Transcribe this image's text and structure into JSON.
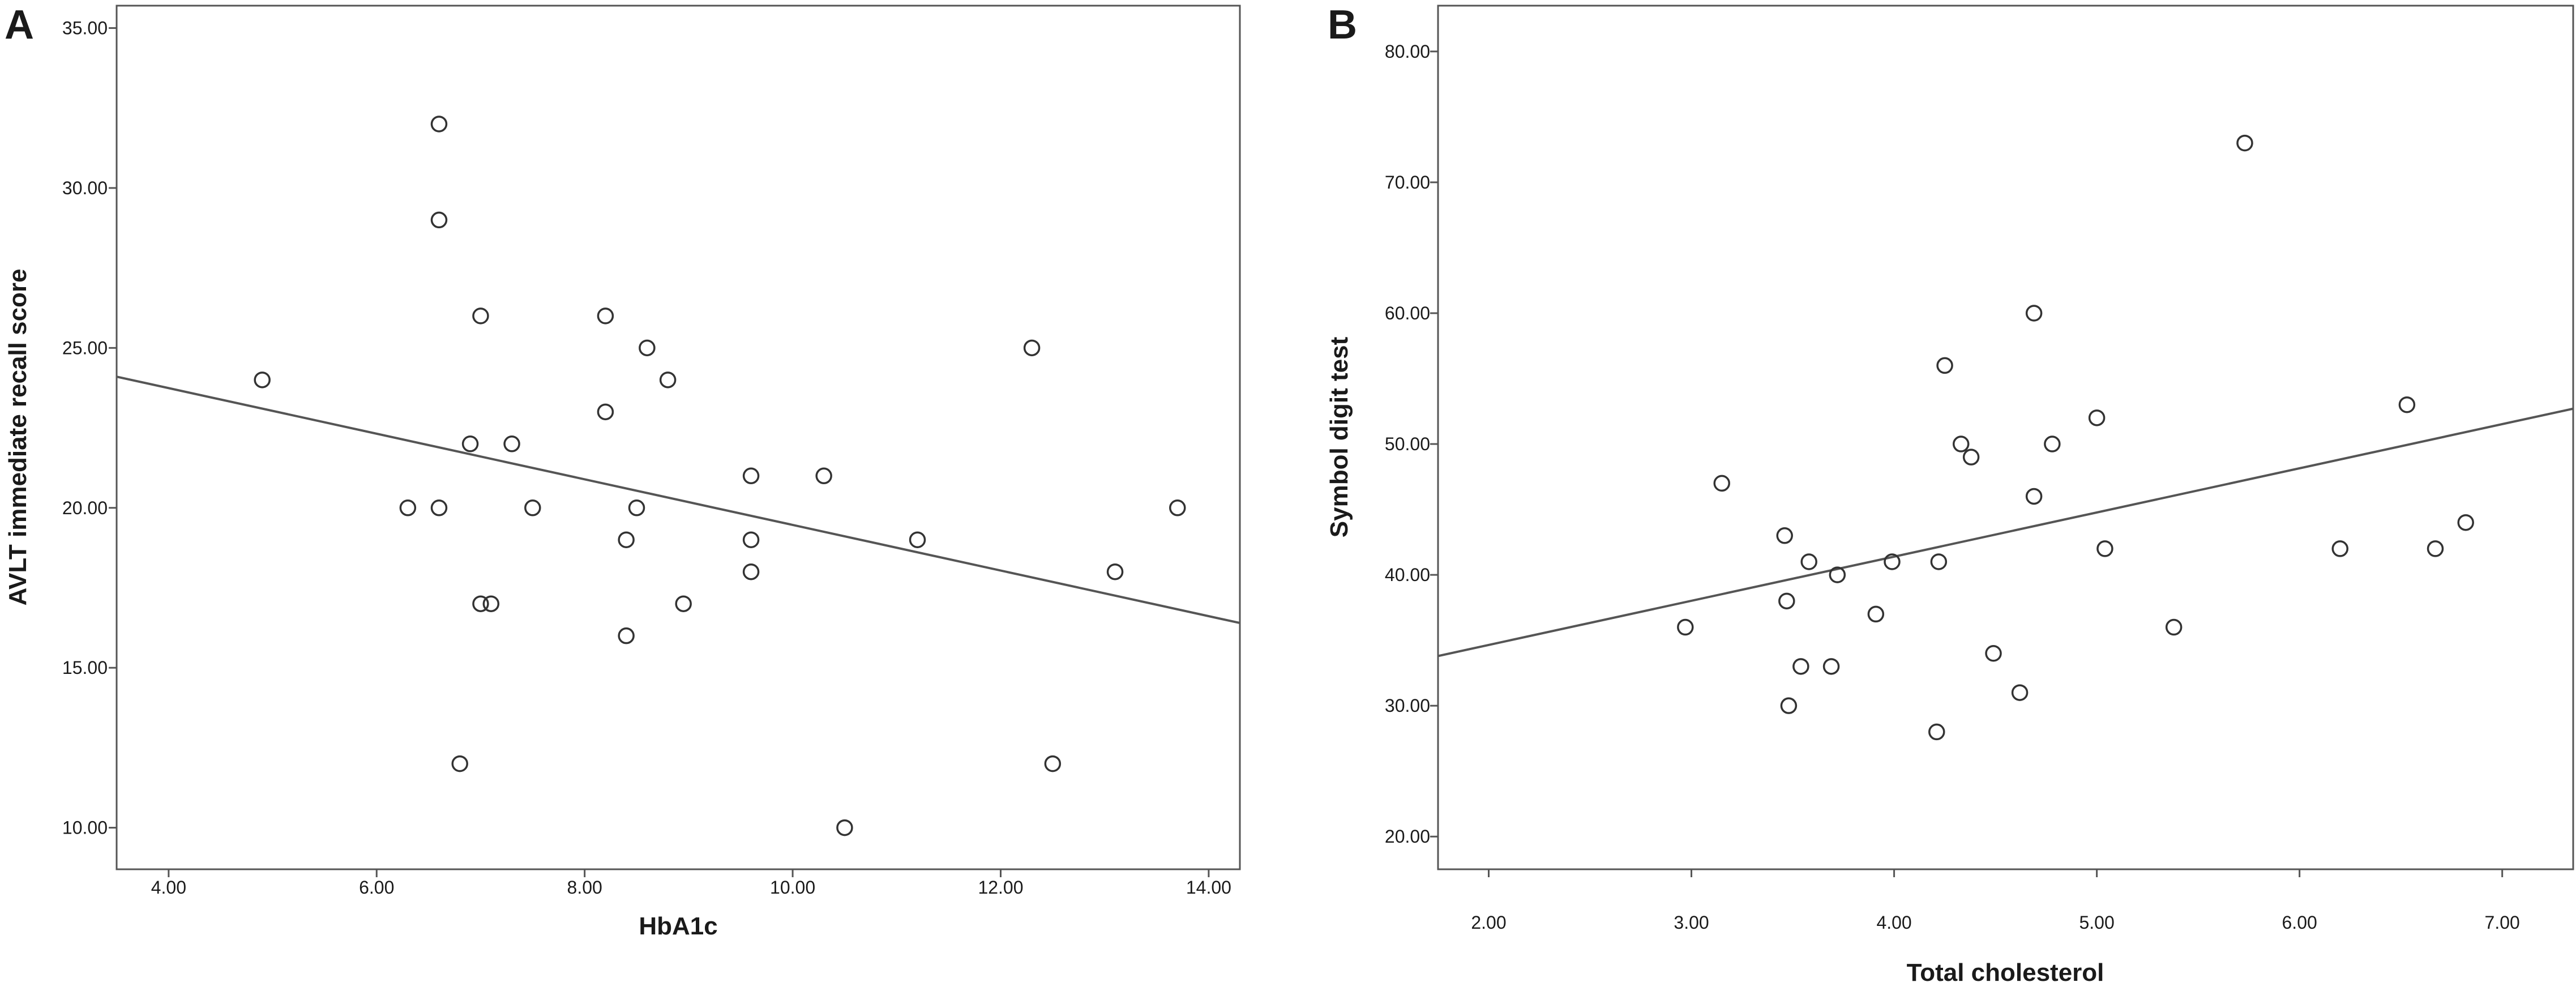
{
  "chart_data": [
    {
      "type": "scatter",
      "panel_label": "A",
      "title": "",
      "xlabel": "HbA1c",
      "ylabel": "AVLT  immediate  recall  score",
      "xlim": [
        3.5,
        14.3
      ],
      "ylim": [
        8.7,
        35.7
      ],
      "xticks": [
        4,
        6,
        8,
        10,
        12,
        14
      ],
      "yticks": [
        10,
        15,
        20,
        25,
        30,
        35
      ],
      "xtick_labels": [
        "4.00",
        "6.00",
        "8.00",
        "10.00",
        "12.00",
        "14.00"
      ],
      "ytick_labels": [
        "10.00",
        "15.00",
        "20.00",
        "25.00",
        "30.00",
        "35.00"
      ],
      "grid": false,
      "legend": "none",
      "points": [
        [
          4.9,
          24
        ],
        [
          6.3,
          20
        ],
        [
          6.6,
          32
        ],
        [
          6.6,
          29
        ],
        [
          6.6,
          20
        ],
        [
          6.8,
          12
        ],
        [
          6.9,
          22
        ],
        [
          7.0,
          26
        ],
        [
          7.0,
          17
        ],
        [
          7.1,
          17
        ],
        [
          7.3,
          22
        ],
        [
          7.5,
          20
        ],
        [
          8.2,
          26
        ],
        [
          8.2,
          23
        ],
        [
          8.4,
          19
        ],
        [
          8.4,
          16
        ],
        [
          8.5,
          20
        ],
        [
          8.6,
          25
        ],
        [
          8.8,
          24
        ],
        [
          8.95,
          17
        ],
        [
          9.6,
          21
        ],
        [
          9.6,
          19
        ],
        [
          9.6,
          18
        ],
        [
          10.3,
          21
        ],
        [
          10.5,
          10
        ],
        [
          11.2,
          19
        ],
        [
          12.3,
          25
        ],
        [
          12.5,
          12
        ],
        [
          13.1,
          18
        ],
        [
          13.7,
          20
        ]
      ],
      "fit_line": [
        [
          3.5,
          24.1
        ],
        [
          14.3,
          16.4
        ]
      ]
    },
    {
      "type": "scatter",
      "panel_label": "B",
      "title": "",
      "xlabel": "Total  cholesterol",
      "ylabel": "Symbol  digit  test",
      "xlim": [
        1.75,
        7.35
      ],
      "ylim": [
        17.5,
        83.5
      ],
      "xticks": [
        2,
        3,
        4,
        5,
        6,
        7
      ],
      "yticks": [
        20,
        30,
        40,
        50,
        60,
        70,
        80
      ],
      "xtick_labels": [
        "2.00",
        "3.00",
        "4.00",
        "5.00",
        "6.00",
        "7.00"
      ],
      "ytick_labels": [
        "20.00",
        "30.00",
        "40.00",
        "50.00",
        "60.00",
        "70.00",
        "80.00"
      ],
      "grid": false,
      "legend": "none",
      "points": [
        [
          2.97,
          36
        ],
        [
          3.15,
          47
        ],
        [
          3.46,
          43
        ],
        [
          3.47,
          38
        ],
        [
          3.48,
          30
        ],
        [
          3.54,
          33
        ],
        [
          3.58,
          41
        ],
        [
          3.69,
          33
        ],
        [
          3.72,
          40
        ],
        [
          3.91,
          37
        ],
        [
          3.99,
          41
        ],
        [
          4.21,
          28
        ],
        [
          4.22,
          41
        ],
        [
          4.25,
          56
        ],
        [
          4.33,
          50
        ],
        [
          4.38,
          49
        ],
        [
          4.49,
          34
        ],
        [
          4.62,
          31
        ],
        [
          4.69,
          60
        ],
        [
          4.69,
          46
        ],
        [
          4.78,
          50
        ],
        [
          5.0,
          52
        ],
        [
          5.04,
          42
        ],
        [
          5.38,
          36
        ],
        [
          5.73,
          73
        ],
        [
          6.2,
          42
        ],
        [
          6.53,
          53
        ],
        [
          6.67,
          42
        ],
        [
          6.82,
          44
        ]
      ],
      "fit_line": [
        [
          1.75,
          33.8
        ],
        [
          7.35,
          52.7
        ]
      ]
    }
  ]
}
